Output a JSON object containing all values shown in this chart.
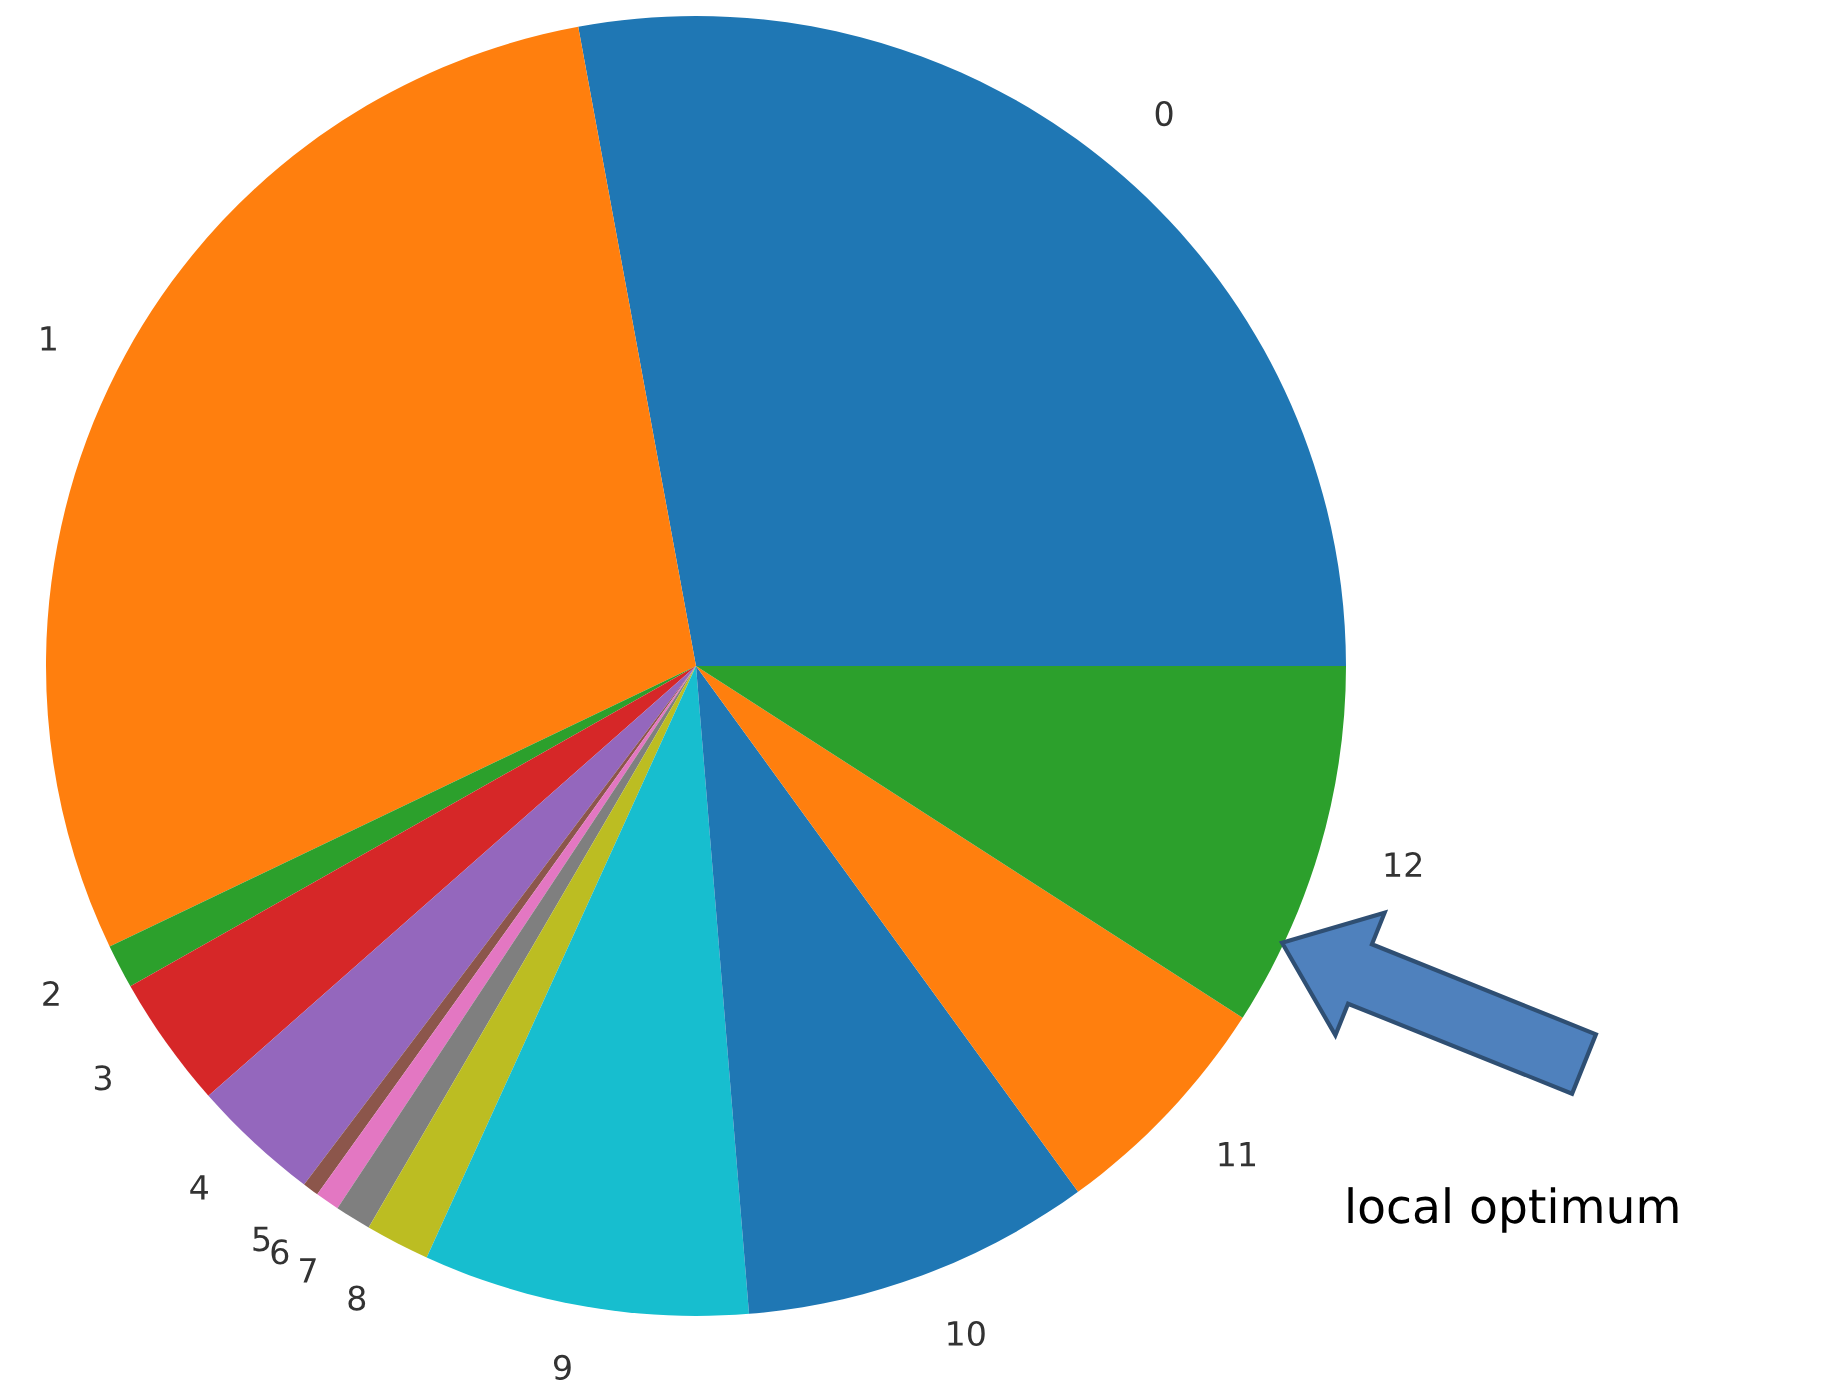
{
  "chart_data": {
    "type": "pie",
    "categories": [
      "0",
      "1",
      "2",
      "3",
      "4",
      "5",
      "6",
      "7",
      "8",
      "9",
      "10",
      "11",
      "12"
    ],
    "values": [
      27.9,
      29.2,
      1.1,
      3.3,
      3.2,
      0.4,
      0.6,
      0.9,
      1.6,
      8.1,
      8.7,
      5.9,
      9.1
    ],
    "colors": [
      "#1f77b4",
      "#ff7f0e",
      "#2ca02c",
      "#d62728",
      "#9467bd",
      "#8c564b",
      "#e377c2",
      "#7f7f7f",
      "#bcbd22",
      "#17becf",
      "#1f77b4",
      "#ff7f0e",
      "#2ca02c"
    ],
    "annotations": [
      "local optimum"
    ]
  }
}
